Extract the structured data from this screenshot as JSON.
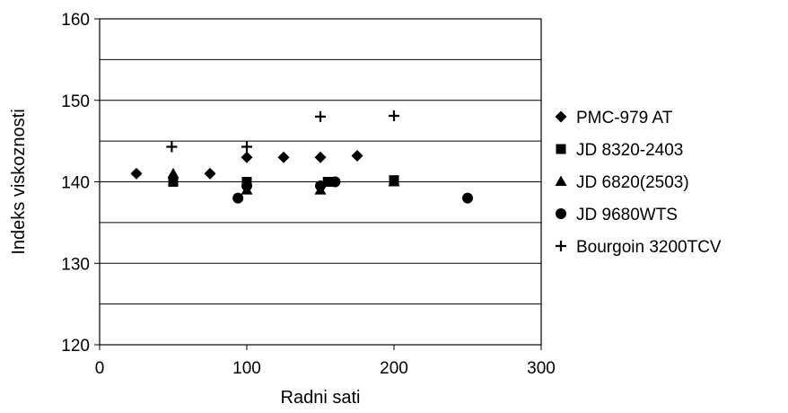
{
  "chart_data": {
    "type": "scatter",
    "xlabel": "Radni sati",
    "ylabel": "Indeks viskoznosti",
    "xlim": [
      0,
      300
    ],
    "ylim": [
      120,
      160
    ],
    "xticks": [
      "0",
      "100",
      "200",
      "300"
    ],
    "yticks": [
      "120",
      "130",
      "140",
      "150",
      "160"
    ],
    "grid": "horizontal",
    "legend_position": "right",
    "series": [
      {
        "name": "PMC-979 AT",
        "marker": "diamond",
        "points": [
          [
            25,
            141
          ],
          [
            75,
            141
          ],
          [
            100,
            143
          ],
          [
            125,
            143
          ],
          [
            150,
            143
          ],
          [
            175,
            143.2
          ]
        ]
      },
      {
        "name": "JD 8320-2403",
        "marker": "square",
        "points": [
          [
            50,
            140
          ],
          [
            100,
            140
          ],
          [
            155,
            140
          ],
          [
            200,
            140.2
          ]
        ]
      },
      {
        "name": "JD 6820(2503)",
        "marker": "triangle",
        "points": [
          [
            50,
            141
          ],
          [
            100,
            139
          ],
          [
            150,
            139
          ],
          [
            200,
            140
          ]
        ]
      },
      {
        "name": "JD 9680WTS",
        "marker": "circle",
        "points": [
          [
            94,
            138
          ],
          [
            100,
            139.5
          ],
          [
            150,
            139.5
          ],
          [
            160,
            140
          ],
          [
            250,
            138
          ]
        ]
      },
      {
        "name": "Bourgoin 3200TCV",
        "marker": "plus",
        "points": [
          [
            49,
            144.3
          ],
          [
            100,
            144.3
          ],
          [
            150,
            148
          ],
          [
            200,
            148.1
          ]
        ]
      }
    ]
  }
}
